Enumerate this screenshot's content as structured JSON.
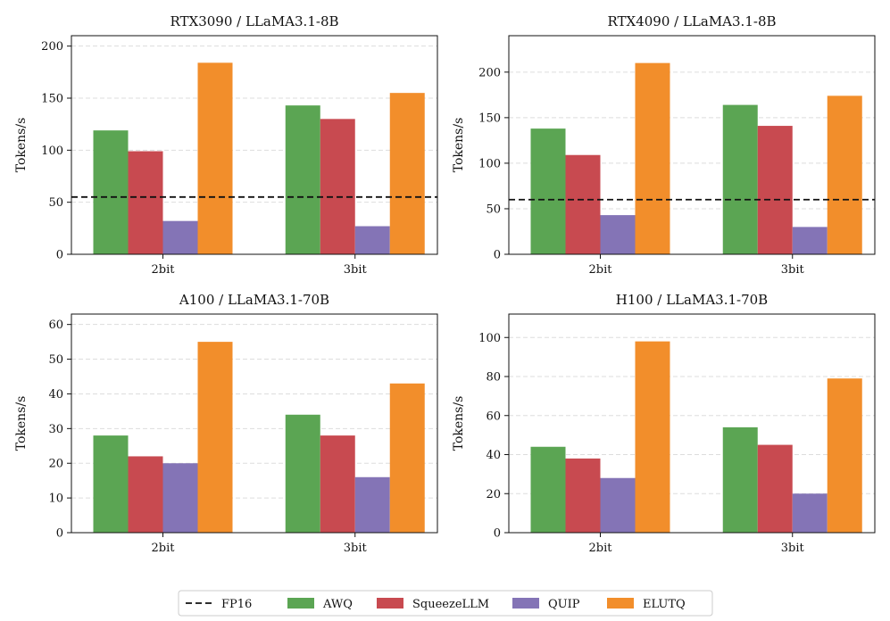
{
  "chart_data": [
    {
      "type": "bar",
      "title": "RTX3090 / LLaMA3.1-8B",
      "ylabel": "Tokens/s",
      "xlabel": "",
      "categories": [
        "2bit",
        "3bit"
      ],
      "ylim": [
        0,
        210
      ],
      "yticks": [
        0,
        50,
        100,
        150,
        200
      ],
      "fp16": 55,
      "series": [
        {
          "name": "AWQ",
          "values": [
            119,
            143
          ]
        },
        {
          "name": "SqueezeLLM",
          "values": [
            99,
            130
          ]
        },
        {
          "name": "QUIP",
          "values": [
            32,
            27
          ]
        },
        {
          "name": "ELUTQ",
          "values": [
            184,
            155
          ]
        }
      ]
    },
    {
      "type": "bar",
      "title": "RTX4090 / LLaMA3.1-8B",
      "ylabel": "Tokens/s",
      "xlabel": "",
      "categories": [
        "2bit",
        "3bit"
      ],
      "ylim": [
        0,
        240
      ],
      "yticks": [
        0,
        50,
        100,
        150,
        200
      ],
      "fp16": 60,
      "series": [
        {
          "name": "AWQ",
          "values": [
            138,
            164
          ]
        },
        {
          "name": "SqueezeLLM",
          "values": [
            109,
            141
          ]
        },
        {
          "name": "QUIP",
          "values": [
            43,
            30
          ]
        },
        {
          "name": "ELUTQ",
          "values": [
            210,
            174
          ]
        }
      ]
    },
    {
      "type": "bar",
      "title": "A100 / LLaMA3.1-70B",
      "ylabel": "Tokens/s",
      "xlabel": "",
      "categories": [
        "2bit",
        "3bit"
      ],
      "ylim": [
        0,
        63
      ],
      "yticks": [
        0,
        10,
        20,
        30,
        40,
        50,
        60
      ],
      "fp16": null,
      "series": [
        {
          "name": "AWQ",
          "values": [
            28,
            34
          ]
        },
        {
          "name": "SqueezeLLM",
          "values": [
            22,
            28
          ]
        },
        {
          "name": "QUIP",
          "values": [
            20,
            16
          ]
        },
        {
          "name": "ELUTQ",
          "values": [
            55,
            43
          ]
        }
      ]
    },
    {
      "type": "bar",
      "title": "H100 / LLaMA3.1-70B",
      "ylabel": "Tokens/s",
      "xlabel": "",
      "categories": [
        "2bit",
        "3bit"
      ],
      "ylim": [
        0,
        112
      ],
      "yticks": [
        0,
        20,
        40,
        60,
        80,
        100
      ],
      "fp16": null,
      "series": [
        {
          "name": "AWQ",
          "values": [
            44,
            54
          ]
        },
        {
          "name": "SqueezeLLM",
          "values": [
            38,
            45
          ]
        },
        {
          "name": "QUIP",
          "values": [
            28,
            20
          ]
        },
        {
          "name": "ELUTQ",
          "values": [
            98,
            79
          ]
        }
      ]
    }
  ],
  "legend": {
    "position": "bottom-center",
    "items": [
      {
        "name": "FP16",
        "style": "dashed-line",
        "color": "#111111"
      },
      {
        "name": "AWQ",
        "style": "patch",
        "color": "#5ba553"
      },
      {
        "name": "SqueezeLLM",
        "style": "patch",
        "color": "#c84a50"
      },
      {
        "name": "QUIP",
        "style": "patch",
        "color": "#8474b6"
      },
      {
        "name": "ELUTQ",
        "style": "patch",
        "color": "#f28e2b"
      }
    ]
  },
  "colors": {
    "AWQ": "#5ba553",
    "SqueezeLLM": "#c84a50",
    "QUIP": "#8474b6",
    "ELUTQ": "#f28e2b",
    "grid": "#dddddd"
  }
}
